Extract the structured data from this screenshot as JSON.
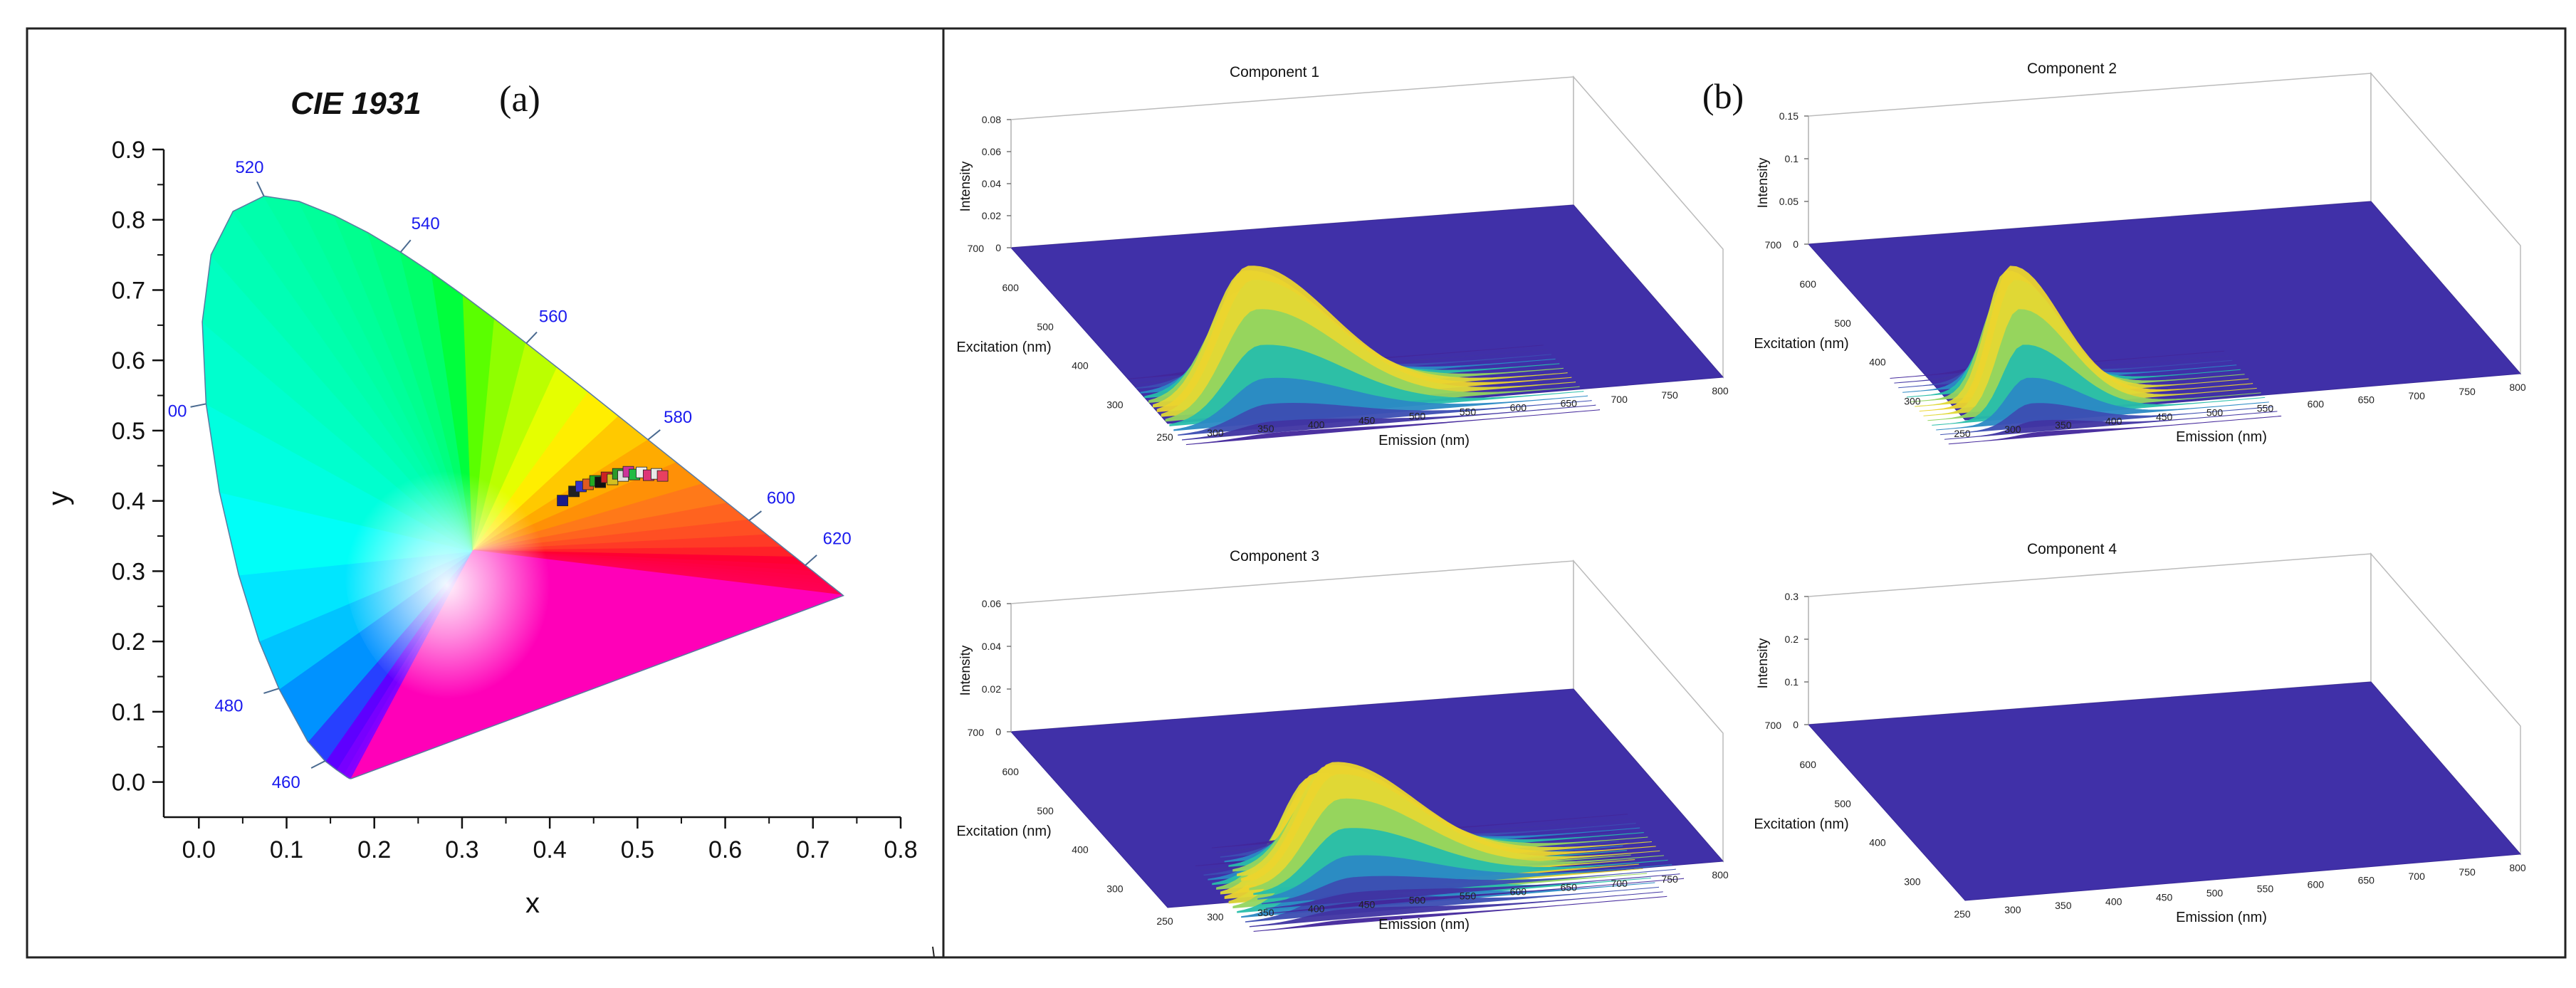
{
  "panel_a": {
    "title": "CIE 1931",
    "label": "(a)",
    "wavelength_labels": [
      "520",
      "540",
      "560",
      "580",
      "600",
      "620",
      "480",
      "460",
      "00"
    ]
  },
  "panel_b": {
    "label": "(b)"
  },
  "chart_data": [
    {
      "type": "scatter",
      "title": "CIE 1931",
      "xlabel": "x",
      "ylabel": "y",
      "xlim": [
        -0.04,
        0.8
      ],
      "ylim": [
        -0.05,
        0.9
      ],
      "xticks": [
        0.0,
        0.1,
        0.2,
        0.3,
        0.4,
        0.5,
        0.6,
        0.7,
        0.8
      ],
      "yticks": [
        0.0,
        0.1,
        0.2,
        0.3,
        0.4,
        0.5,
        0.6,
        0.7,
        0.8,
        0.9
      ],
      "xtick_labels": [
        "0.0",
        "0.1",
        "0.2",
        "0.3",
        "0.4",
        "0.5",
        "0.6",
        "0.7",
        "0.8"
      ],
      "ytick_labels": [
        "0.0",
        "0.1",
        "0.2",
        "0.3",
        "0.4",
        "0.5",
        "0.6",
        "0.7",
        "0.8",
        "0.9"
      ],
      "locus_wavelengths": [
        {
          "label": "460",
          "x": 0.144,
          "y": 0.03
        },
        {
          "label": "480",
          "x": 0.091,
          "y": 0.133
        },
        {
          "label": "00",
          "x": 0.008,
          "y": 0.538
        },
        {
          "label": "520",
          "x": 0.074,
          "y": 0.834
        },
        {
          "label": "540",
          "x": 0.23,
          "y": 0.754
        },
        {
          "label": "560",
          "x": 0.373,
          "y": 0.624
        },
        {
          "label": "580",
          "x": 0.512,
          "y": 0.487
        },
        {
          "label": "600",
          "x": 0.627,
          "y": 0.372
        },
        {
          "label": "620",
          "x": 0.691,
          "y": 0.308
        }
      ],
      "points": [
        {
          "x": 0.415,
          "y": 0.4,
          "color": "#1a1a8a"
        },
        {
          "x": 0.428,
          "y": 0.413,
          "color": "#222222"
        },
        {
          "x": 0.436,
          "y": 0.42,
          "color": "#3333cc"
        },
        {
          "x": 0.444,
          "y": 0.423,
          "color": "#e05a20"
        },
        {
          "x": 0.452,
          "y": 0.428,
          "color": "#22aa22"
        },
        {
          "x": 0.458,
          "y": 0.426,
          "color": "#111111"
        },
        {
          "x": 0.465,
          "y": 0.433,
          "color": "#cc2222"
        },
        {
          "x": 0.472,
          "y": 0.43,
          "color": "#d4c020"
        },
        {
          "x": 0.478,
          "y": 0.438,
          "color": "#2a9a2a"
        },
        {
          "x": 0.484,
          "y": 0.435,
          "color": "#dddddd"
        },
        {
          "x": 0.49,
          "y": 0.441,
          "color": "#cc3399"
        },
        {
          "x": 0.497,
          "y": 0.437,
          "color": "#22bb44"
        },
        {
          "x": 0.505,
          "y": 0.44,
          "color": "#eeeeee"
        },
        {
          "x": 0.513,
          "y": 0.436,
          "color": "#dd3377"
        },
        {
          "x": 0.522,
          "y": 0.438,
          "color": "#e8e8e8"
        },
        {
          "x": 0.529,
          "y": 0.435,
          "color": "#e84060"
        }
      ]
    },
    {
      "type": "surface",
      "title": "Component 1",
      "xlabel": "Emission (nm)",
      "ylabel": "Excitation (nm)",
      "zlabel": "Intensity",
      "x_ticks": [
        "250",
        "300",
        "350",
        "400",
        "450",
        "500",
        "550",
        "600",
        "650",
        "700",
        "750",
        "800"
      ],
      "y_ticks": [
        "300",
        "400",
        "500",
        "600",
        "700"
      ],
      "z_ticks": [
        "0",
        "0.02",
        "0.04",
        "0.06",
        "0.08"
      ],
      "z_max": 0.08,
      "peaks": [
        {
          "em": 340,
          "ex": 280,
          "height": 0.075
        }
      ]
    },
    {
      "type": "surface",
      "title": "Component 2",
      "xlabel": "Emission (nm)",
      "ylabel": "Excitation (nm)",
      "zlabel": "Intensity",
      "x_ticks": [
        "250",
        "300",
        "350",
        "400",
        "450",
        "500",
        "550",
        "600",
        "650",
        "700",
        "750",
        "800"
      ],
      "y_ticks": [
        "300",
        "400",
        "500",
        "600",
        "700"
      ],
      "z_ticks": [
        "0",
        "0.05",
        "0.1",
        "0.15"
      ],
      "z_max": 0.15,
      "peaks": [
        {
          "em": 305,
          "ex": 280,
          "height": 0.14
        }
      ]
    },
    {
      "type": "surface",
      "title": "Component 3",
      "xlabel": "Emission (nm)",
      "ylabel": "Excitation (nm)",
      "zlabel": "Intensity",
      "x_ticks": [
        "250",
        "300",
        "350",
        "400",
        "450",
        "500",
        "550",
        "600",
        "650",
        "700",
        "750",
        "800"
      ],
      "y_ticks": [
        "300",
        "400",
        "500",
        "600",
        "700"
      ],
      "z_ticks": [
        "0",
        "0.02",
        "0.04",
        "0.06"
      ],
      "z_max": 0.06,
      "peaks": [
        {
          "em": 400,
          "ex": 260,
          "height": 0.048
        },
        {
          "em": 430,
          "ex": 300,
          "height": 0.045
        }
      ]
    },
    {
      "type": "surface",
      "title": "Component 4",
      "xlabel": "Emission (nm)",
      "ylabel": "Excitation (nm)",
      "zlabel": "Intensity",
      "x_ticks": [
        "250",
        "300",
        "350",
        "400",
        "450",
        "500",
        "550",
        "600",
        "650",
        "700",
        "750",
        "800"
      ],
      "y_ticks": [
        "300",
        "400",
        "500",
        "600",
        "700"
      ],
      "z_ticks": [
        "0",
        "0.1",
        "0.2",
        "0.3"
      ],
      "z_max": 0.3,
      "peaks": []
    }
  ]
}
